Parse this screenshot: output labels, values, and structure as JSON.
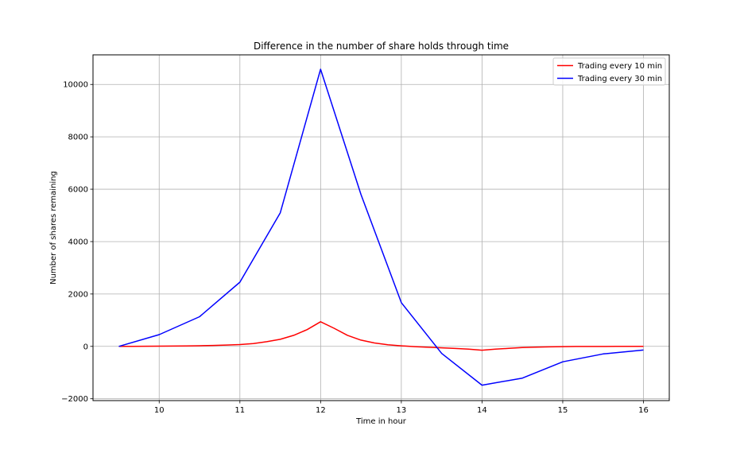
{
  "chart_data": {
    "type": "line",
    "title": "Difference in the number of share holds through time",
    "xlabel": "Time in hour",
    "ylabel": "Number of shares remaining",
    "xlim": [
      9.18,
      16.32
    ],
    "ylim": [
      -2070,
      11130
    ],
    "xticks": [
      10,
      11,
      12,
      13,
      14,
      15,
      16
    ],
    "yticks": [
      -2000,
      0,
      2000,
      4000,
      6000,
      8000,
      10000
    ],
    "grid": true,
    "legend_position": "top-right",
    "series": [
      {
        "name": "Trading every 10 min",
        "color": "#ff0000",
        "x": [
          9.5,
          9.667,
          9.833,
          10.0,
          10.167,
          10.333,
          10.5,
          10.667,
          10.833,
          11.0,
          11.167,
          11.333,
          11.5,
          11.667,
          11.833,
          12.0,
          12.167,
          12.333,
          12.5,
          12.667,
          12.833,
          13.0,
          13.167,
          13.333,
          13.5,
          13.667,
          13.833,
          14.0,
          14.167,
          14.333,
          14.5,
          14.667,
          14.833,
          15.0,
          15.167,
          15.333,
          15.5,
          15.667,
          15.833,
          16.0
        ],
        "y": [
          0,
          3,
          6,
          9,
          13,
          18,
          25,
          35,
          50,
          70,
          110,
          180,
          270,
          420,
          640,
          940,
          690,
          420,
          240,
          130,
          60,
          20,
          -10,
          -35,
          -55,
          -80,
          -105,
          -145,
          -105,
          -75,
          -45,
          -30,
          -20,
          -10,
          -5,
          -3,
          -2,
          -1,
          0,
          0
        ]
      },
      {
        "name": "Trading every 30 min",
        "color": "#0000ff",
        "x": [
          9.5,
          10.0,
          10.5,
          11.0,
          11.5,
          12.0,
          12.5,
          13.0,
          13.5,
          14.0,
          14.5,
          15.0,
          15.5,
          16.0
        ],
        "y": [
          0,
          450,
          1130,
          2450,
          5100,
          10580,
          5800,
          1670,
          -270,
          -1480,
          -1210,
          -590,
          -290,
          -140
        ]
      }
    ]
  }
}
